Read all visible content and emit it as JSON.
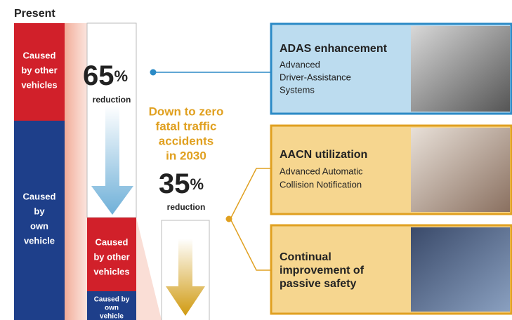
{
  "present_label": "Present",
  "present": {
    "other": [
      "Caused",
      "by other",
      "vehicles"
    ],
    "own": [
      "Caused",
      "by",
      "own",
      "vehicle"
    ]
  },
  "stage1": {
    "number": "65",
    "unit": "%",
    "label": "reduction",
    "other": [
      "Caused",
      "by other",
      "vehicles"
    ],
    "own": [
      "Caused by",
      "own",
      "vehicle"
    ]
  },
  "goal": [
    "Down to zero",
    "fatal traffic",
    "accidents",
    "in 2030"
  ],
  "stage2": {
    "number": "35",
    "unit": "%",
    "label": "reduction"
  },
  "measures": [
    {
      "title": "ADAS enhancement",
      "lines": [
        "Advanced",
        "Driver-Assistance",
        "Systems"
      ]
    },
    {
      "title": "AACN utilization",
      "lines": [
        "Advanced Automatic",
        "Collision Notification"
      ]
    },
    {
      "title": [
        "Continual",
        "improvement of",
        "passive safety"
      ]
    }
  ]
}
